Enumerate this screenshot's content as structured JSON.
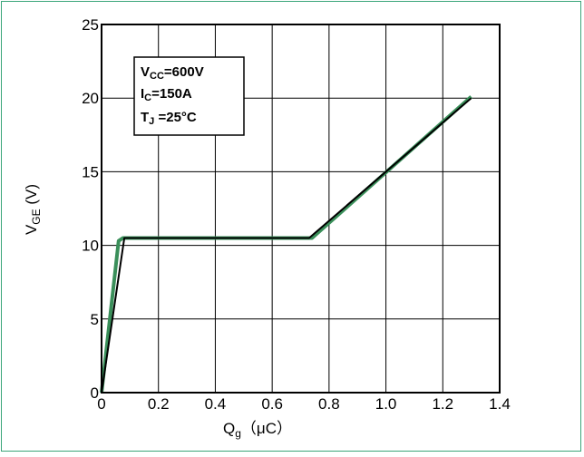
{
  "chart_data": {
    "type": "line",
    "title": "",
    "xlabel": {
      "main": "Q",
      "sub": "g",
      "unit": "（μC）"
    },
    "ylabel": {
      "main": "V",
      "sub": "GE",
      "unit": " (V)"
    },
    "xlim": [
      0,
      1.4
    ],
    "ylim": [
      0,
      25
    ],
    "x_ticks": [
      0,
      0.2,
      0.4,
      0.6,
      0.8,
      1.0,
      1.2,
      1.4
    ],
    "x_tick_labels": [
      "0",
      "0.2",
      "0.4",
      "0.6",
      "0.8",
      "1.0",
      "1.2",
      "1.4"
    ],
    "y_ticks": [
      0,
      5,
      10,
      15,
      20,
      25
    ],
    "y_tick_labels": [
      "0",
      "5",
      "10",
      "15",
      "20",
      "25"
    ],
    "grid": true,
    "conditions": [
      {
        "main": "V",
        "sub": "CC",
        "rest": "=600V"
      },
      {
        "main": "I",
        "sub": "C",
        "rest": "=150A"
      },
      {
        "main": "T",
        "sub": "J",
        "rest": " =25°C"
      }
    ],
    "series": [
      {
        "color": "#3a8f5a",
        "points": [
          [
            0,
            0
          ],
          [
            0.06,
            10.3
          ],
          [
            0.075,
            10.5
          ],
          [
            0.74,
            10.5
          ],
          [
            1.3,
            20.1
          ]
        ]
      },
      {
        "color": "#000000",
        "points": [
          [
            0,
            0
          ],
          [
            0.08,
            10.5
          ],
          [
            0.73,
            10.5
          ],
          [
            1.3,
            20.0
          ]
        ]
      }
    ]
  },
  "colors": {
    "frame_border": "#3aa579",
    "grid": "#000000",
    "curve_green": "#3a8f5a",
    "curve_black": "#000000"
  }
}
